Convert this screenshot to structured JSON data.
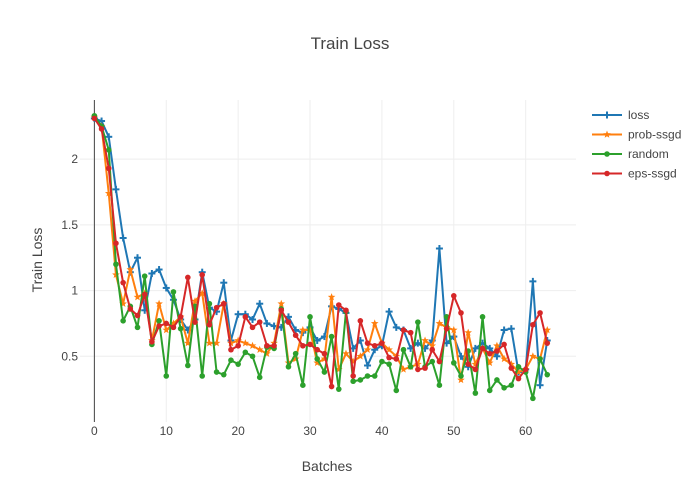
{
  "chart_data": {
    "type": "line",
    "title": "Train Loss",
    "xlabel": "Batches",
    "ylabel": "Train Loss",
    "xlim": [
      -2,
      67
    ],
    "ylim": [
      0.0,
      2.45
    ],
    "xticks": [
      0,
      10,
      20,
      30,
      40,
      50,
      60
    ],
    "yticks": [
      0.5,
      1,
      1.5,
      2
    ],
    "ytick_labels": [
      "0.5",
      "1",
      "1.5",
      "2"
    ],
    "grid": true,
    "legend_position": "top-right",
    "x": [
      0,
      1,
      2,
      3,
      4,
      5,
      6,
      7,
      8,
      9,
      10,
      11,
      12,
      13,
      14,
      15,
      16,
      17,
      18,
      19,
      20,
      21,
      22,
      23,
      24,
      25,
      26,
      27,
      28,
      29,
      30,
      31,
      32,
      33,
      34,
      35,
      36,
      37,
      38,
      39,
      40,
      41,
      42,
      43,
      44,
      45,
      46,
      47,
      48,
      49,
      50,
      51,
      52,
      53,
      54,
      55,
      56,
      57,
      58,
      59,
      60,
      61,
      62,
      63
    ],
    "series": [
      {
        "name": "loss",
        "color": "#1f77b4",
        "marker": "cross",
        "values": [
          2.31,
          2.29,
          2.17,
          1.77,
          1.4,
          1.14,
          1.25,
          0.85,
          1.13,
          1.16,
          1.02,
          0.93,
          0.78,
          0.7,
          0.78,
          1.14,
          0.87,
          0.84,
          1.06,
          0.62,
          0.82,
          0.82,
          0.78,
          0.9,
          0.75,
          0.73,
          0.72,
          0.8,
          0.7,
          0.68,
          0.72,
          0.62,
          0.65,
          0.88,
          0.86,
          0.83,
          0.56,
          0.62,
          0.43,
          0.55,
          0.58,
          0.84,
          0.72,
          0.7,
          0.56,
          0.6,
          0.56,
          0.62,
          1.32,
          0.6,
          0.65,
          0.5,
          0.42,
          0.56,
          0.6,
          0.56,
          0.5,
          0.7,
          0.71,
          0.38,
          0.4,
          1.07,
          0.28,
          0.62
        ]
      },
      {
        "name": "prob-ssgd",
        "color": "#ff7f0e",
        "marker": "star",
        "values": [
          2.32,
          2.25,
          1.74,
          1.12,
          0.9,
          1.16,
          0.95,
          0.98,
          0.62,
          0.9,
          0.7,
          0.75,
          0.8,
          0.6,
          0.92,
          0.98,
          0.6,
          0.6,
          0.9,
          0.6,
          0.62,
          0.6,
          0.58,
          0.55,
          0.52,
          0.6,
          0.9,
          0.45,
          0.48,
          0.7,
          0.7,
          0.45,
          0.48,
          0.95,
          0.4,
          0.52,
          0.46,
          0.5,
          0.55,
          0.75,
          0.6,
          0.55,
          0.5,
          0.4,
          0.42,
          0.44,
          0.62,
          0.58,
          0.75,
          0.72,
          0.7,
          0.32,
          0.68,
          0.44,
          0.56,
          0.45,
          0.58,
          0.48,
          0.44,
          0.38,
          0.4,
          0.5,
          0.48,
          0.7
        ]
      },
      {
        "name": "random",
        "color": "#2ca02c",
        "marker": "circle",
        "values": [
          2.33,
          2.25,
          2.07,
          1.2,
          0.77,
          0.88,
          0.72,
          1.11,
          0.59,
          0.77,
          0.35,
          0.99,
          0.71,
          0.43,
          0.88,
          0.35,
          0.9,
          0.38,
          0.36,
          0.47,
          0.44,
          0.53,
          0.5,
          0.34,
          0.57,
          0.56,
          0.86,
          0.42,
          0.52,
          0.28,
          0.8,
          0.48,
          0.38,
          0.65,
          0.25,
          0.84,
          0.31,
          0.32,
          0.35,
          0.35,
          0.46,
          0.44,
          0.24,
          0.55,
          0.42,
          0.76,
          0.42,
          0.46,
          0.28,
          0.8,
          0.45,
          0.35,
          0.54,
          0.22,
          0.8,
          0.24,
          0.32,
          0.26,
          0.28,
          0.42,
          0.38,
          0.18,
          0.48,
          0.36
        ]
      },
      {
        "name": "eps-ssgd",
        "color": "#d62728",
        "marker": "circle",
        "values": [
          2.31,
          2.23,
          1.93,
          1.36,
          1.06,
          0.86,
          0.81,
          0.97,
          0.61,
          0.73,
          0.75,
          0.72,
          0.8,
          1.1,
          0.76,
          1.12,
          0.74,
          0.87,
          0.9,
          0.55,
          0.58,
          0.8,
          0.72,
          0.76,
          0.58,
          0.58,
          0.85,
          0.76,
          0.66,
          0.58,
          0.59,
          0.55,
          0.52,
          0.27,
          0.89,
          0.85,
          0.35,
          0.77,
          0.6,
          0.58,
          0.6,
          0.49,
          0.48,
          0.7,
          0.68,
          0.4,
          0.41,
          0.55,
          0.46,
          0.71,
          0.96,
          0.83,
          0.44,
          0.4,
          0.56,
          0.52,
          0.54,
          0.59,
          0.41,
          0.33,
          0.4,
          0.74,
          0.83,
          0.6
        ]
      }
    ]
  }
}
